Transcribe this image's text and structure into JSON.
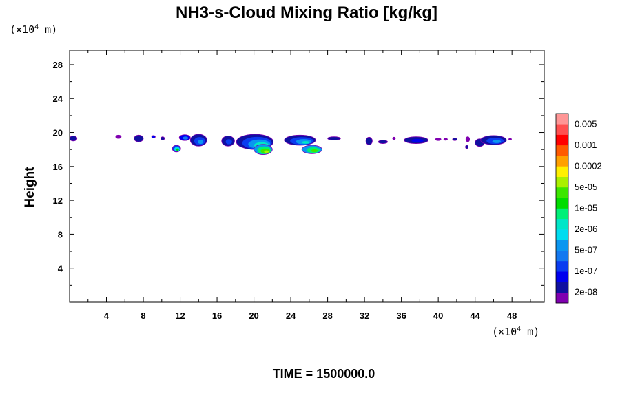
{
  "chart_data": {
    "type": "heatmap",
    "title": "NH3-s-Cloud Mixing Ratio [kg/kg]",
    "ylabel": "Height",
    "xlabel": "",
    "y_unit": {
      "prefix": "(×10",
      "exp": "4",
      "suffix": " m)"
    },
    "x_unit": {
      "prefix": "(×10",
      "exp": "4",
      "suffix": " m)"
    },
    "xlim": [
      0,
      51.5
    ],
    "ylim": [
      0,
      29.7
    ],
    "x_ticks": [
      4,
      8,
      12,
      16,
      20,
      24,
      28,
      32,
      36,
      40,
      44,
      48
    ],
    "y_ticks": [
      4,
      8,
      12,
      16,
      20,
      24,
      28
    ],
    "x_tick_labels": [
      "4",
      "8",
      "12",
      "16",
      "20",
      "24",
      "28",
      "32",
      "36",
      "40",
      "44",
      "48"
    ],
    "y_tick_labels": [
      "4",
      "8",
      "12",
      "16",
      "20",
      "24",
      "28"
    ],
    "colorbar": {
      "colors": [
        "#8000b0",
        "#1010a0",
        "#0000ee",
        "#0a3cf0",
        "#1478f0",
        "#0a96f0",
        "#00dcf0",
        "#00e6c8",
        "#00f078",
        "#00dc00",
        "#3ce600",
        "#aaf000",
        "#fff000",
        "#ffa000",
        "#ff5a00",
        "#ff0000",
        "#ff5050",
        "#ff9696"
      ],
      "tick_labels": [
        "2e-08",
        "1e-07",
        "5e-07",
        "2e-06",
        "1e-05",
        "5e-05",
        "0.0002",
        "0.001",
        "0.005"
      ]
    },
    "cloud_patches": [
      {
        "cx": 0.4,
        "cy": 19.3,
        "rx": 0.4,
        "ry": 0.3,
        "levels": [
          1
        ]
      },
      {
        "cx": 5.3,
        "cy": 19.5,
        "rx": 0.3,
        "ry": 0.2,
        "levels": [
          0
        ]
      },
      {
        "cx": 7.5,
        "cy": 19.3,
        "rx": 0.5,
        "ry": 0.4,
        "levels": [
          1
        ]
      },
      {
        "cx": 9.1,
        "cy": 19.5,
        "rx": 0.2,
        "ry": 0.15,
        "levels": [
          2
        ]
      },
      {
        "cx": 10.1,
        "cy": 19.3,
        "rx": 0.2,
        "ry": 0.2,
        "levels": [
          1
        ]
      },
      {
        "cx": 11.6,
        "cy": 18.1,
        "rx": 0.45,
        "ry": 0.4,
        "levels": [
          3,
          6,
          9
        ]
      },
      {
        "cx": 12.5,
        "cy": 19.4,
        "rx": 0.6,
        "ry": 0.35,
        "levels": [
          2,
          4
        ]
      },
      {
        "cx": 14.0,
        "cy": 19.1,
        "rx": 0.9,
        "ry": 0.7,
        "levels": [
          1,
          3,
          5
        ]
      },
      {
        "cx": 17.2,
        "cy": 19.0,
        "rx": 0.7,
        "ry": 0.6,
        "levels": [
          1,
          3
        ]
      },
      {
        "cx": 20.1,
        "cy": 18.9,
        "rx": 2.0,
        "ry": 0.9,
        "levels": [
          1,
          3,
          5,
          7,
          9
        ]
      },
      {
        "cx": 21.0,
        "cy": 18.0,
        "rx": 1.0,
        "ry": 0.6,
        "levels": [
          5,
          8,
          10,
          11
        ]
      },
      {
        "cx": 25.0,
        "cy": 19.1,
        "rx": 1.7,
        "ry": 0.6,
        "levels": [
          1,
          3,
          5,
          7
        ]
      },
      {
        "cx": 26.3,
        "cy": 18.0,
        "rx": 1.1,
        "ry": 0.5,
        "levels": [
          5,
          8,
          10
        ]
      },
      {
        "cx": 28.7,
        "cy": 19.3,
        "rx": 0.7,
        "ry": 0.2,
        "levels": [
          1
        ]
      },
      {
        "cx": 32.5,
        "cy": 19.0,
        "rx": 0.35,
        "ry": 0.45,
        "levels": [
          1
        ]
      },
      {
        "cx": 34.0,
        "cy": 18.9,
        "rx": 0.5,
        "ry": 0.2,
        "levels": [
          1
        ]
      },
      {
        "cx": 35.2,
        "cy": 19.3,
        "rx": 0.15,
        "ry": 0.15,
        "levels": [
          0
        ]
      },
      {
        "cx": 37.6,
        "cy": 19.1,
        "rx": 1.3,
        "ry": 0.4,
        "levels": [
          1,
          2
        ]
      },
      {
        "cx": 40.0,
        "cy": 19.2,
        "rx": 0.3,
        "ry": 0.15,
        "levels": [
          0
        ]
      },
      {
        "cx": 40.8,
        "cy": 19.2,
        "rx": 0.2,
        "ry": 0.12,
        "levels": [
          0
        ]
      },
      {
        "cx": 41.8,
        "cy": 19.2,
        "rx": 0.25,
        "ry": 0.15,
        "levels": [
          1
        ]
      },
      {
        "cx": 43.2,
        "cy": 19.2,
        "rx": 0.2,
        "ry": 0.3,
        "levels": [
          0
        ]
      },
      {
        "cx": 43.1,
        "cy": 18.3,
        "rx": 0.15,
        "ry": 0.2,
        "levels": [
          1
        ]
      },
      {
        "cx": 44.5,
        "cy": 18.8,
        "rx": 0.5,
        "ry": 0.45,
        "levels": [
          1
        ]
      },
      {
        "cx": 46.0,
        "cy": 19.1,
        "rx": 1.4,
        "ry": 0.55,
        "levels": [
          1,
          3,
          5
        ]
      },
      {
        "cx": 47.8,
        "cy": 19.2,
        "rx": 0.15,
        "ry": 0.1,
        "levels": [
          0
        ]
      }
    ]
  },
  "time_label": "TIME = 1500000.0"
}
